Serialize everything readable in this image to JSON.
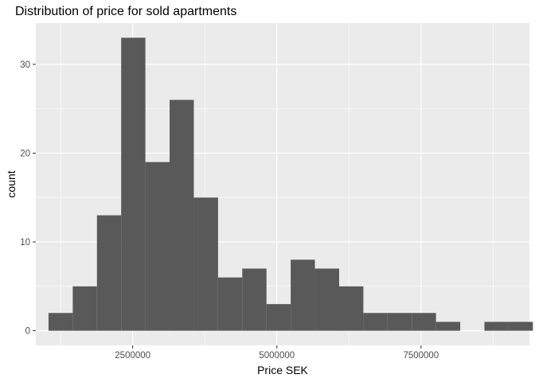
{
  "chart_data": {
    "type": "bar",
    "title": "Distribution of price for sold apartments",
    "xlabel": "Price SEK",
    "ylabel": "count",
    "x_ticks": [
      "2500000",
      "5000000",
      "7500000"
    ],
    "x_tick_values": [
      2500000,
      5000000,
      7500000
    ],
    "y_ticks": [
      "0",
      "10",
      "20",
      "30"
    ],
    "y_tick_values": [
      0,
      10,
      20,
      30
    ],
    "bin_width": 420000,
    "bins_start": [
      1040000,
      1460000,
      1880000,
      2300000,
      2720000,
      3140000,
      3560000,
      3980000,
      4400000,
      4820000,
      5240000,
      5660000,
      6080000,
      6500000,
      6920000,
      7340000,
      7760000,
      8180000,
      8600000,
      9020000
    ],
    "values": [
      2,
      5,
      13,
      33,
      19,
      26,
      15,
      6,
      7,
      3,
      8,
      7,
      5,
      2,
      2,
      2,
      1,
      0,
      1,
      1
    ],
    "xlim": [
      820000,
      9380000
    ],
    "ylim": [
      -1.65,
      34.65
    ],
    "grid": true,
    "bar_color": "#595959",
    "panel_color": "#ebebeb"
  }
}
